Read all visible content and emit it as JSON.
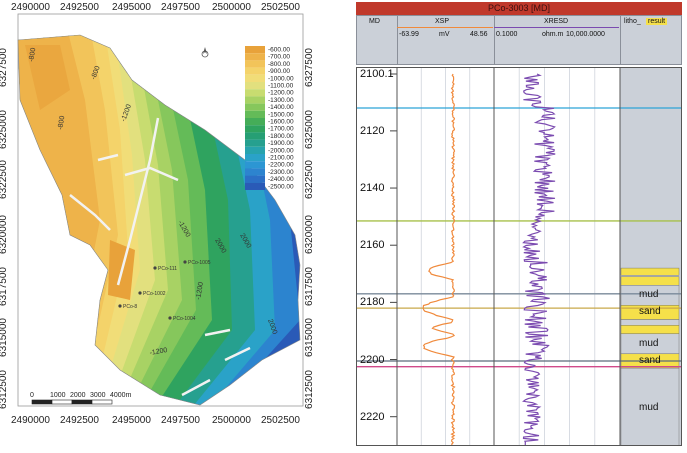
{
  "map": {
    "x_ticks": [
      "2490000",
      "2492500",
      "2495000",
      "2497500",
      "2500000",
      "2502500"
    ],
    "y_ticks": [
      "6327500",
      "6325000",
      "6322500",
      "6320000",
      "6317500",
      "6315000",
      "6312500"
    ],
    "legend_values": [
      "-600.00",
      "-700.00",
      "-800.00",
      "-900.00",
      "-1000.00",
      "-1100.00",
      "-1200.00",
      "-1300.00",
      "-1400.00",
      "-1500.00",
      "-1600.00",
      "-1700.00",
      "-1800.00",
      "-1900.00",
      "-2000.00",
      "-2100.00",
      "-2200.00",
      "-2300.00",
      "-2400.00",
      "-2500.00"
    ],
    "legend_colors": [
      "#e8a23a",
      "#eeb34a",
      "#f2c45a",
      "#f4d36a",
      "#f1dd78",
      "#e2e07e",
      "#c8dc70",
      "#a8d264",
      "#86c75c",
      "#64bb58",
      "#45ad58",
      "#2fa35f",
      "#269f74",
      "#26a08f",
      "#27a3ad",
      "#2aa2c8",
      "#2c96d3",
      "#2d84cf",
      "#2c6fc6",
      "#2a5ab7"
    ],
    "contour_labels": [
      "-800",
      "-800",
      "-800",
      "-1200",
      "-1200",
      "-1200",
      "-1200",
      "2000",
      "2000",
      "2000"
    ],
    "well_labels": [
      "PCo-111",
      "PCo-1002",
      "PCo-8",
      "PCo-1004",
      "PCo-1005"
    ],
    "scalebar_labels": [
      "0",
      "1000",
      "2000",
      "3000",
      "4000m"
    ],
    "north_icon": "north-arrow-icon"
  },
  "well_log": {
    "title": "PCo-3003 [MD]",
    "header": {
      "md": "MD",
      "xsp": "XSP",
      "xsp_min": "-63.99",
      "xsp_unit": "mV",
      "xsp_max": "48.56",
      "xresd": "XRESD",
      "xresd_min": "0.1000",
      "xresd_unit": "ohm.m",
      "xresd_max": "10,000.0000",
      "litho": "litho_",
      "litho_result": "result"
    },
    "depth_labels": [
      "2100.1",
      "2120",
      "2140",
      "2160",
      "2180",
      "2200",
      "2220"
    ],
    "lithology_labels": [
      "mud",
      "sand",
      "mud",
      "sand",
      "mud"
    ],
    "marker_colors": [
      "#2ca3d6",
      "#a7c04a",
      "#7a8a9a",
      "#c9a84a",
      "#5b6b7a",
      "#d04a8a"
    ],
    "curve_colors": {
      "xsp": "#f08a3c",
      "xresd": "#7b4bb0"
    },
    "sand_color": "#f5e04a"
  }
}
